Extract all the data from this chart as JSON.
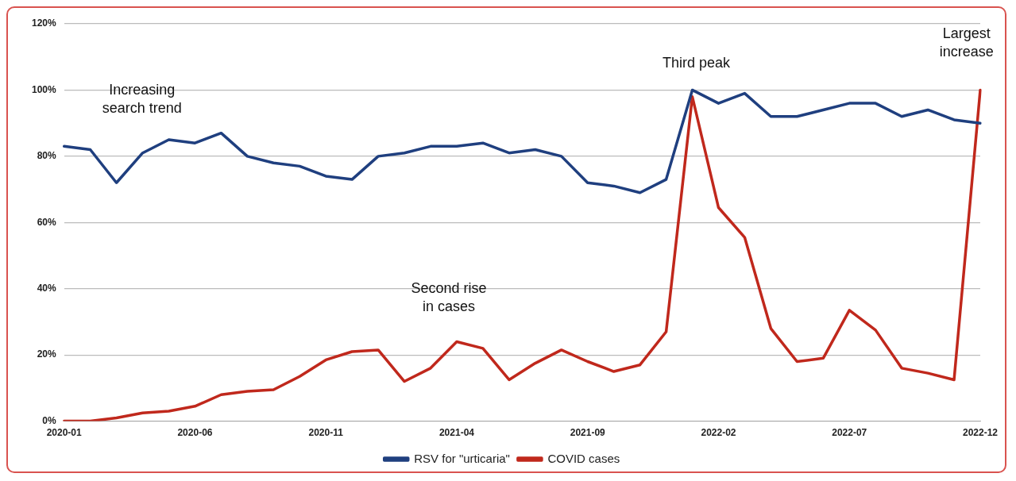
{
  "chart_data": {
    "type": "line",
    "categories": [
      "2020-01",
      null,
      null,
      null,
      null,
      "2020-06",
      null,
      null,
      null,
      null,
      "2020-11",
      null,
      null,
      null,
      null,
      "2021-04",
      null,
      null,
      null,
      null,
      "2021-09",
      null,
      null,
      null,
      null,
      "2022-02",
      null,
      null,
      null,
      null,
      "2022-07",
      null,
      null,
      null,
      null,
      "2022-12"
    ],
    "series": [
      {
        "name": "RSV for \"urticaria\"",
        "color": "#1f3f7f",
        "values": [
          83,
          82,
          72,
          81,
          85,
          84,
          87,
          80,
          78,
          77,
          74,
          73,
          80,
          81,
          83,
          83,
          84,
          81,
          82,
          80,
          72,
          71,
          69,
          73,
          100,
          96,
          99,
          92,
          92,
          94,
          96,
          96,
          92,
          94,
          91,
          90
        ]
      },
      {
        "name": "COVID cases",
        "color": "#c0281c",
        "values": [
          0,
          0,
          1,
          2.5,
          3,
          4.5,
          8,
          9,
          9.5,
          13.5,
          18.5,
          21,
          21.5,
          12,
          16,
          24,
          22,
          12.5,
          17.5,
          21.5,
          18,
          15,
          17,
          27,
          98,
          64.5,
          55.5,
          28,
          18,
          19,
          33.5,
          27.5,
          16,
          14.5,
          12.5,
          100
        ]
      }
    ],
    "ylim": [
      0,
      120
    ],
    "yticks": [
      {
        "value": 0,
        "label": "0%"
      },
      {
        "value": 20,
        "label": "20%"
      },
      {
        "value": 40,
        "label": "40%"
      },
      {
        "value": 60,
        "label": "60%"
      },
      {
        "value": 80,
        "label": "80%"
      },
      {
        "value": 100,
        "label": "100%"
      },
      {
        "value": 120,
        "label": "120%"
      }
    ],
    "grid": "y",
    "legend": "bottom",
    "marker": "none",
    "line_style": "solid",
    "annotations": [
      "Increasing search trend",
      "Second rise in cases",
      "Third peak",
      "Largest increase"
    ]
  }
}
